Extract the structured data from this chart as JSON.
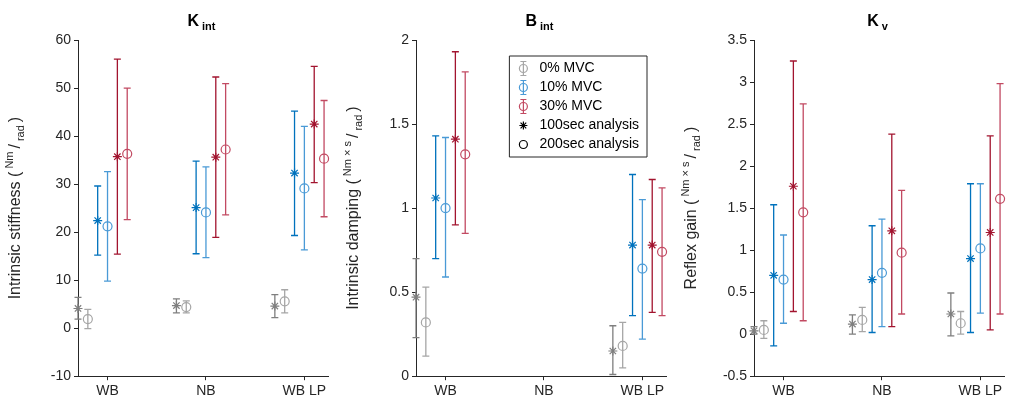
{
  "chart_data": [
    {
      "type": "scatter",
      "title": "K$_{int}$",
      "ylabel": "Intrinsic stiffness ($^{Nm}$/$_{rad}$)",
      "categories": [
        "WB",
        "NB",
        "WB LP"
      ],
      "ylim": [
        -10,
        60
      ],
      "yticks": [
        -10,
        0,
        10,
        20,
        30,
        40,
        50,
        60
      ],
      "grid": false,
      "legend": false,
      "series": [
        {
          "color": "#7f7f7f",
          "marker": "cross",
          "values": [
            4.1,
            4.7,
            4.6
          ],
          "errors": [
            [
              1.9,
              6.4
            ],
            [
              3.2,
              6.1
            ],
            [
              2.2,
              7.0
            ]
          ]
        },
        {
          "color": "#a6a6a6",
          "marker": "circle",
          "values": [
            1.9,
            4.4,
            5.6
          ],
          "errors": [
            [
              -0.1,
              3.9
            ],
            [
              3.2,
              5.7
            ],
            [
              3.2,
              8.0
            ]
          ]
        },
        {
          "color": "#0072bd",
          "marker": "cross",
          "values": [
            22.4,
            25.1,
            32.3
          ],
          "errors": [
            [
              15.2,
              29.6
            ],
            [
              15.5,
              34.8
            ],
            [
              19.3,
              45.2
            ]
          ]
        },
        {
          "color": "#4a9ad6",
          "marker": "circle",
          "values": [
            21.2,
            24.1,
            29.1
          ],
          "errors": [
            [
              9.8,
              32.6
            ],
            [
              14.7,
              33.6
            ],
            [
              16.3,
              42.0
            ]
          ]
        },
        {
          "color": "#a2142f",
          "marker": "cross",
          "values": [
            35.7,
            35.6,
            42.5
          ],
          "errors": [
            [
              15.4,
              56.0
            ],
            [
              18.9,
              52.3
            ],
            [
              30.3,
              54.5
            ]
          ]
        },
        {
          "color": "#c24a62",
          "marker": "circle",
          "values": [
            36.3,
            37.2,
            35.3
          ],
          "errors": [
            [
              22.6,
              50.0
            ],
            [
              23.6,
              50.9
            ],
            [
              23.2,
              47.4
            ]
          ]
        }
      ]
    },
    {
      "type": "scatter",
      "title": "B$_{int}$",
      "ylabel": "Intrinsic damping ($^{Nm × s}$/$_{rad}$)",
      "categories": [
        "WB",
        "NB",
        "WB LP"
      ],
      "ylim": [
        0,
        2
      ],
      "yticks": [
        0,
        0.5,
        1,
        1.5,
        2
      ],
      "grid": false,
      "legend": "top right",
      "series": [
        {
          "color": "#7f7f7f",
          "marker": "cross",
          "values": [
            0.47,
            null,
            0.15
          ],
          "errors": [
            [
              0.23,
              0.7
            ],
            null,
            [
              0.01,
              0.3
            ]
          ]
        },
        {
          "name": "0% MVC",
          "color": "#a6a6a6",
          "marker": "circle",
          "values": [
            0.32,
            null,
            0.18
          ],
          "errors": [
            [
              0.12,
              0.53
            ],
            null,
            [
              0.05,
              0.32
            ]
          ]
        },
        {
          "color": "#0072bd",
          "marker": "cross",
          "values": [
            1.06,
            null,
            0.78
          ],
          "errors": [
            [
              0.7,
              1.43
            ],
            null,
            [
              0.36,
              1.2
            ]
          ]
        },
        {
          "name": "10% MVC",
          "color": "#4a9ad6",
          "marker": "circle",
          "values": [
            1.0,
            null,
            0.64
          ],
          "errors": [
            [
              0.59,
              1.42
            ],
            null,
            [
              0.22,
              1.05
            ]
          ]
        },
        {
          "color": "#a2142f",
          "marker": "cross",
          "values": [
            1.41,
            null,
            0.78
          ],
          "errors": [
            [
              0.9,
              1.93
            ],
            null,
            [
              0.38,
              1.17
            ]
          ]
        },
        {
          "name": "30% MVC",
          "color": "#c24a62",
          "marker": "circle",
          "values": [
            1.32,
            null,
            0.74
          ],
          "errors": [
            [
              0.85,
              1.81
            ],
            null,
            [
              0.36,
              1.12
            ]
          ]
        },
        {
          "name": "100sec analysis",
          "color": "#000000",
          "marker": "cross",
          "values": [
            null,
            null,
            null
          ]
        },
        {
          "name": "200sec analysis",
          "color": "#000000",
          "marker": "circle",
          "values": [
            null,
            null,
            null
          ]
        }
      ]
    },
    {
      "type": "scatter",
      "title": "K$_{v}$",
      "ylabel": "Reflex gain ($^{Nm × s}$/$_{rad}$)",
      "categories": [
        "WB",
        "NB",
        "WB LP"
      ],
      "ylim": [
        -0.5,
        3.5
      ],
      "yticks": [
        -0.5,
        0,
        0.5,
        1,
        1.5,
        2,
        2.5,
        3,
        3.5
      ],
      "grid": false,
      "legend": false,
      "series": [
        {
          "color": "#7f7f7f",
          "marker": "cross",
          "values": [
            0.04,
            0.12,
            0.24
          ],
          "errors": [
            [
              0.0,
              0.09
            ],
            [
              0.0,
              0.23
            ],
            [
              -0.02,
              0.49
            ]
          ]
        },
        {
          "color": "#a6a6a6",
          "marker": "circle",
          "values": [
            0.05,
            0.17,
            0.13
          ],
          "errors": [
            [
              -0.05,
              0.16
            ],
            [
              0.03,
              0.32
            ],
            [
              0.0,
              0.27
            ]
          ]
        },
        {
          "color": "#0072bd",
          "marker": "cross",
          "values": [
            0.7,
            0.65,
            0.9
          ],
          "errors": [
            [
              -0.14,
              1.54
            ],
            [
              0.02,
              1.29
            ],
            [
              0.02,
              1.79
            ]
          ]
        },
        {
          "color": "#4a9ad6",
          "marker": "circle",
          "values": [
            0.65,
            0.73,
            1.02
          ],
          "errors": [
            [
              0.13,
              1.18
            ],
            [
              0.09,
              1.37
            ],
            [
              0.25,
              1.79
            ]
          ]
        },
        {
          "color": "#a2142f",
          "marker": "cross",
          "values": [
            1.76,
            1.23,
            1.21
          ],
          "errors": [
            [
              0.27,
              3.25
            ],
            [
              0.09,
              2.38
            ],
            [
              0.05,
              2.36
            ]
          ]
        },
        {
          "color": "#c24a62",
          "marker": "circle",
          "values": [
            1.45,
            0.97,
            1.61
          ],
          "errors": [
            [
              0.16,
              2.74
            ],
            [
              0.24,
              1.71
            ],
            [
              0.24,
              2.98
            ]
          ]
        }
      ]
    }
  ]
}
